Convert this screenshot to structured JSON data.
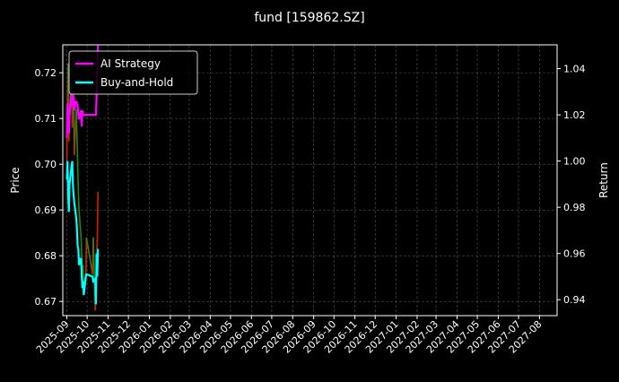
{
  "chart_data": {
    "type": "line",
    "title": "fund [159862.SZ]",
    "ylabel_left": "Price",
    "ylabel_right": "Return",
    "xlabel": "",
    "grid": true,
    "legend_placement": "top-left",
    "ylim_left": [
      0.6669,
      0.7261
    ],
    "ylim_right": [
      0.9331,
      1.0503
    ],
    "xlim": [
      "2025-08-26",
      "2027-08-27"
    ],
    "yticks_left": [
      "0.67",
      "0.68",
      "0.69",
      "0.70",
      "0.71",
      "0.72"
    ],
    "yticks_right": [
      "0.94",
      "0.96",
      "0.98",
      "1.00",
      "1.02",
      "1.04"
    ],
    "xticks": [
      "2025-09",
      "2025-10",
      "2025-11",
      "2025-12",
      "2026-01",
      "2026-02",
      "2026-03",
      "2026-04",
      "2026-05",
      "2026-06",
      "2026-07",
      "2026-08",
      "2026-09",
      "2026-10",
      "2026-11",
      "2026-12",
      "2027-01",
      "2027-02",
      "2027-03",
      "2027-04",
      "2027-05",
      "2027-06",
      "2027-07",
      "2027-08"
    ],
    "dates": [
      "2025-09-01",
      "2025-09-02",
      "2025-09-03",
      "2025-09-04",
      "2025-09-05",
      "2025-09-08",
      "2025-09-09",
      "2025-09-10",
      "2025-09-11",
      "2025-09-12",
      "2025-09-15",
      "2025-09-16",
      "2025-09-17",
      "2025-09-18",
      "2025-09-19",
      "2025-09-22",
      "2025-09-23",
      "2025-09-24",
      "2025-09-25",
      "2025-09-26",
      "2025-09-29",
      "2025-09-30",
      "2025-10-09",
      "2025-10-10",
      "2025-10-13",
      "2025-10-14",
      "2025-10-15",
      "2025-10-16",
      "2025-10-17"
    ],
    "price": [
      0.7,
      0.715,
      0.722,
      0.705,
      0.712,
      0.718,
      0.708,
      0.714,
      0.716,
      0.702,
      0.712,
      0.706,
      0.7,
      0.694,
      0.69,
      0.684,
      0.68,
      0.676,
      0.678,
      0.672,
      0.674,
      0.684,
      0.676,
      0.684,
      0.668,
      0.672,
      0.678,
      0.684,
      0.694
    ],
    "price_colors": {
      "up": "#d62000",
      "down": "#1a8a1a"
    },
    "series": [
      {
        "name": "AI Strategy",
        "color": "#ff00ff",
        "axis": "right",
        "values": [
          1.01,
          1.025,
          1.018,
          1.012,
          1.02,
          1.03,
          1.024,
          1.026,
          1.028,
          1.022,
          1.026,
          1.025,
          1.024,
          1.02,
          1.018,
          1.022,
          1.015,
          1.022,
          1.02,
          1.02,
          1.02,
          1.02,
          1.02,
          1.02,
          1.02,
          1.02,
          1.028,
          1.04,
          1.05
        ]
      },
      {
        "name": "Buy-and-Hold",
        "color": "#00ffff",
        "axis": "right",
        "values": [
          0.992,
          1.0,
          0.985,
          0.978,
          0.99,
          0.998,
          1.0,
          0.99,
          0.985,
          0.982,
          0.975,
          0.97,
          0.963,
          0.962,
          0.955,
          0.958,
          0.95,
          0.945,
          0.948,
          0.942,
          0.95,
          0.951,
          0.95,
          0.948,
          0.949,
          0.938,
          0.96,
          0.95,
          0.962
        ]
      }
    ]
  }
}
